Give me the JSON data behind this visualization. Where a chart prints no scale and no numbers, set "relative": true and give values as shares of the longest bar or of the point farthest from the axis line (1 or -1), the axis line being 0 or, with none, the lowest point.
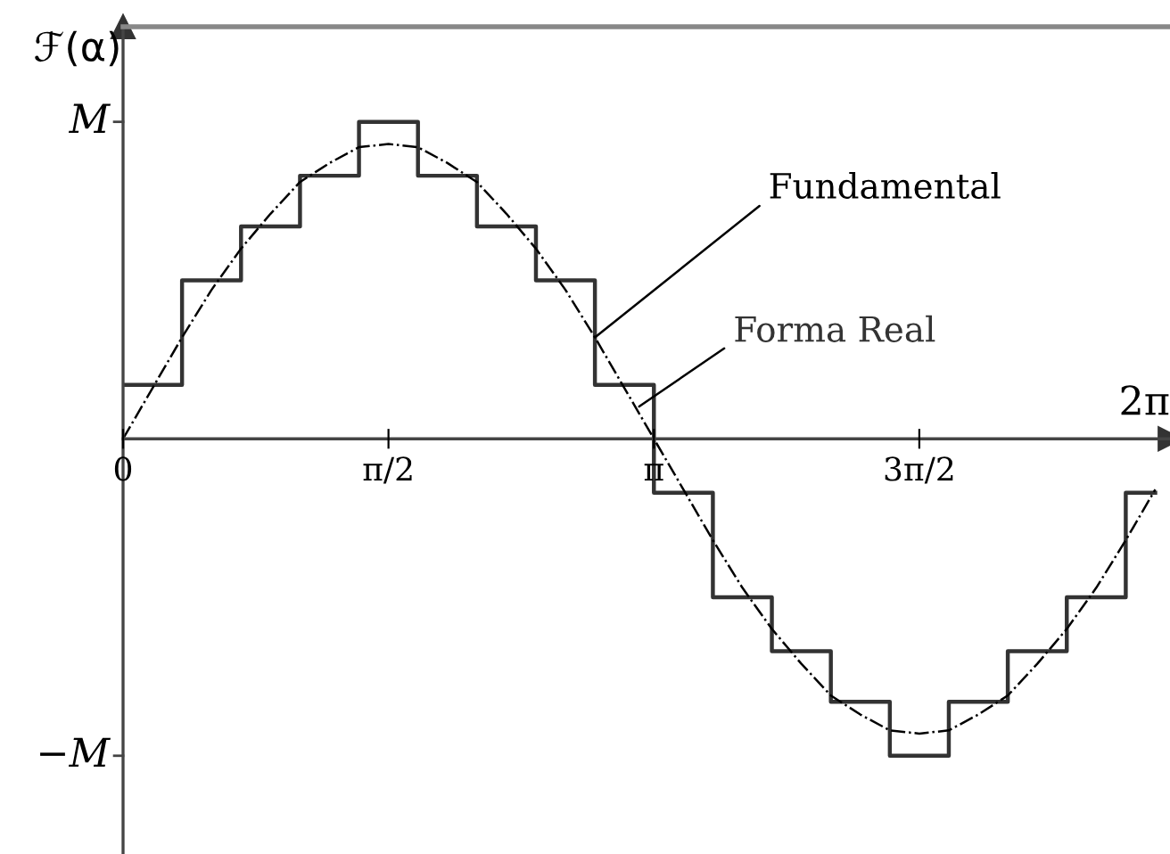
{
  "chart_data": {
    "type": "line",
    "relative": true,
    "xlabel": "2π",
    "ylabel": "ℱ(α)",
    "categories": [
      "0",
      null,
      null,
      null,
      null,
      null,
      null,
      null,
      null,
      "π/2",
      null,
      null,
      null,
      null,
      null,
      null,
      null,
      null,
      "π",
      null,
      null,
      null,
      null,
      null,
      null,
      null,
      null,
      "3π/2",
      null,
      null,
      null,
      null,
      null,
      null,
      null,
      null
    ],
    "series": [
      {
        "name": "Forma Real",
        "type": "step",
        "color": "#333333",
        "line_style": "solid",
        "values": [
          0.17,
          0.17,
          0.5,
          0.5,
          0.67,
          0.67,
          0.83,
          0.83,
          1.0,
          1.0,
          0.83,
          0.83,
          0.67,
          0.67,
          0.5,
          0.5,
          0.17,
          0.17,
          -0.17,
          -0.17,
          -0.5,
          -0.5,
          -0.67,
          -0.67,
          -0.83,
          -0.83,
          -1.0,
          -1.0,
          -0.83,
          -0.83,
          -0.67,
          -0.67,
          -0.5,
          -0.5,
          -0.17,
          -0.17
        ]
      },
      {
        "name": "Fundamental",
        "color": "#000000",
        "line_style": "dashdot",
        "values": [
          0,
          0.16,
          0.32,
          0.47,
          0.6,
          0.71,
          0.81,
          0.87,
          0.92,
          0.93,
          0.92,
          0.87,
          0.81,
          0.71,
          0.6,
          0.47,
          0.32,
          0.16,
          0,
          -0.16,
          -0.32,
          -0.47,
          -0.6,
          -0.71,
          -0.81,
          -0.87,
          -0.92,
          -0.93,
          -0.92,
          -0.87,
          -0.81,
          -0.71,
          -0.6,
          -0.47,
          -0.32,
          -0.16
        ]
      }
    ],
    "annotations": [
      "M",
      "−M"
    ],
    "legend": false
  }
}
